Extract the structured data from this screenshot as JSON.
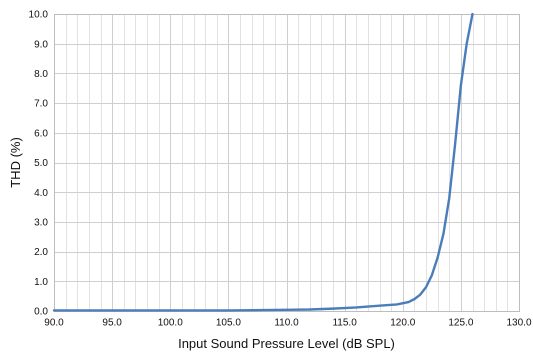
{
  "chart_data": {
    "type": "line",
    "title": "",
    "xlabel": "Input Sound Pressure Level (dB SPL)",
    "ylabel": "THD (%)",
    "xlim": [
      90.0,
      130.0
    ],
    "ylim": [
      0.0,
      10.0
    ],
    "xticks": [
      "90.0",
      "95.0",
      "100.0",
      "105.0",
      "110.0",
      "115.0",
      "120.0",
      "125.0",
      "130.0"
    ],
    "yticks": [
      "0.0",
      "1.0",
      "2.0",
      "3.0",
      "4.0",
      "5.0",
      "6.0",
      "7.0",
      "8.0",
      "9.0",
      "10.0"
    ],
    "grid": true,
    "legend": "none",
    "series": [
      {
        "color": "#4a7ebb",
        "x": [
          90.0,
          95.0,
          100.0,
          105.0,
          108.0,
          110.0,
          112.0,
          114.0,
          116.0,
          118.0,
          119.5,
          120.5,
          121.0,
          121.5,
          122.0,
          122.5,
          123.0,
          123.5,
          124.0,
          124.5,
          125.0,
          125.5,
          126.0
        ],
        "y": [
          0.02,
          0.02,
          0.02,
          0.02,
          0.03,
          0.04,
          0.05,
          0.08,
          0.12,
          0.18,
          0.22,
          0.3,
          0.4,
          0.55,
          0.8,
          1.2,
          1.8,
          2.6,
          3.8,
          5.6,
          7.6,
          9.0,
          10.0
        ]
      }
    ]
  }
}
